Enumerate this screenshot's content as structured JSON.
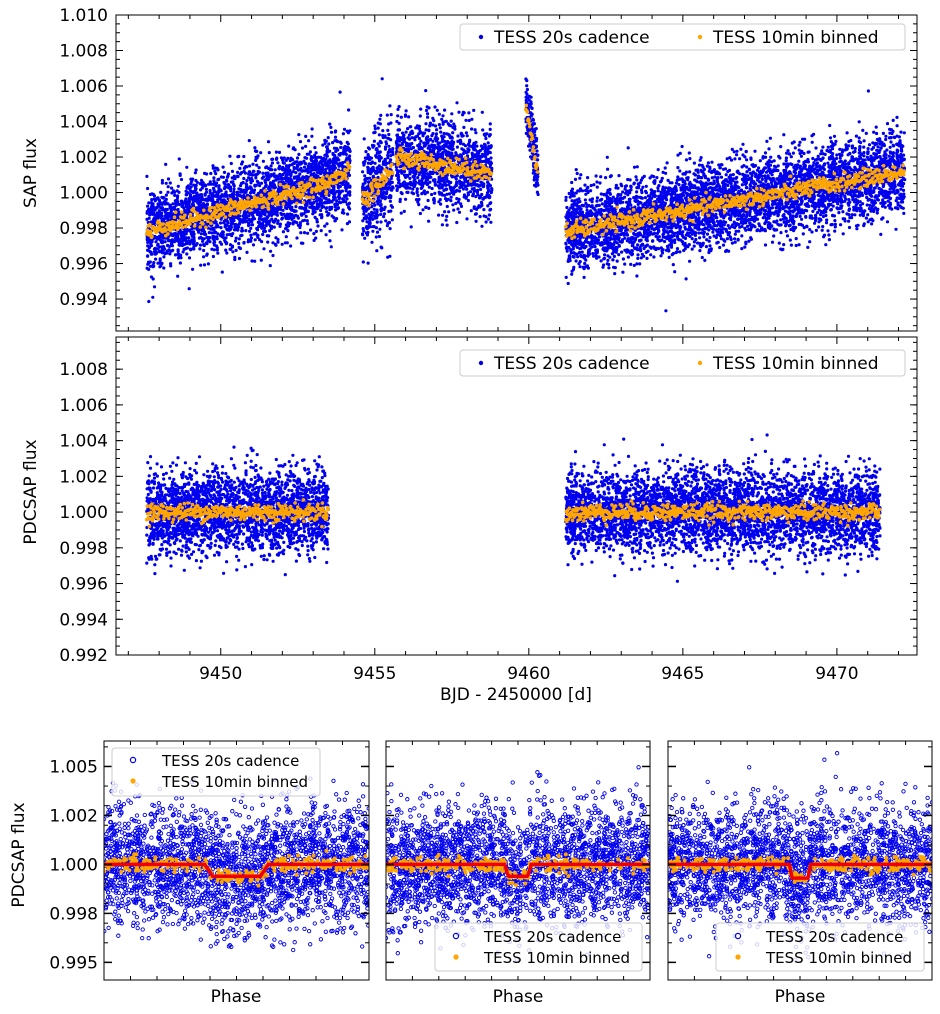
{
  "chart_data": [
    {
      "type": "scatter",
      "ylabel": "SAP flux",
      "xlabel": "",
      "xlim": [
        9446.6,
        9472.6
      ],
      "ylim": [
        0.9922,
        1.01
      ],
      "yticks": [
        "0.994",
        "0.996",
        "0.998",
        "1.000",
        "1.002",
        "1.004",
        "1.006",
        "1.008",
        "1.010"
      ],
      "xticks": [],
      "legend_position": "top-right",
      "segments": [
        {
          "x": [
            9447.6,
            9453.4
          ],
          "y0": [
            0.9978,
            1.0005
          ],
          "spread": 0.003
        },
        {
          "x": [
            9453.4,
            9454.2
          ],
          "y0": [
            1.0005,
            1.0012
          ],
          "spread": 0.0035
        },
        {
          "x": [
            9454.6,
            9455.6
          ],
          "y0": [
            0.9995,
            1.0013
          ],
          "spread": 0.004
        },
        {
          "x": [
            9455.7,
            9458.8
          ],
          "y0": [
            1.002,
            1.0011
          ],
          "spread": 0.0032
        },
        {
          "x": [
            9459.9,
            9460.3
          ],
          "y0": [
            1.005,
            1.001
          ],
          "spread": 0.0025
        },
        {
          "x": [
            9461.2,
            9472.2
          ],
          "y0": [
            0.9978,
            1.0012
          ],
          "spread": 0.003
        }
      ],
      "series": [
        {
          "name": "TESS 20s cadence",
          "color": "#0000ee"
        },
        {
          "name": "TESS 10min binned",
          "color": "#ffa500"
        }
      ]
    },
    {
      "type": "scatter",
      "ylabel": "PDCSAP flux",
      "xlabel": "BJD - 2450000 [d]",
      "xlim": [
        9446.6,
        9472.6
      ],
      "ylim": [
        0.992,
        1.0098
      ],
      "yticks": [
        "0.992",
        "0.994",
        "0.996",
        "0.998",
        "1.000",
        "1.002",
        "1.004",
        "1.006",
        "1.008"
      ],
      "xticks": [
        "9450",
        "9455",
        "9460",
        "9465",
        "9470"
      ],
      "legend_position": "top-right",
      "segments": [
        {
          "x": [
            9447.6,
            9453.5
          ],
          "y0": [
            1.0,
            1.0
          ],
          "spread": 0.003
        },
        {
          "x": [
            9461.2,
            9471.4
          ],
          "y0": [
            1.0,
            1.0
          ],
          "spread": 0.003
        }
      ],
      "series": [
        {
          "name": "TESS 20s cadence",
          "color": "#0000ee"
        },
        {
          "name": "TESS 10min binned",
          "color": "#ffa500"
        }
      ]
    },
    {
      "type": "scatter",
      "ylabel": "PDCSAP flux",
      "xlabel": "Phase",
      "xlim": [
        -0.5,
        0.5
      ],
      "ylim": [
        0.9941,
        1.0063
      ],
      "yticks": [
        "0.995",
        "0.998",
        "1.000",
        "1.002",
        "1.005"
      ],
      "legend_position": "top-left",
      "model": {
        "color": "#ee0000",
        "depth": 0.0006,
        "center": 0.0,
        "halfwidth": 0.12
      },
      "series": [
        {
          "name": "TESS 20s cadence",
          "color": "#0000ee"
        },
        {
          "name": "TESS 10min binned",
          "color": "#ffa500"
        }
      ]
    },
    {
      "type": "scatter",
      "ylabel": "",
      "xlabel": "Phase",
      "xlim": [
        -0.5,
        0.5
      ],
      "ylim": [
        0.9941,
        1.0063
      ],
      "legend_position": "bottom-right",
      "model": {
        "color": "#ee0000",
        "depth": 0.0006,
        "center": 0.0,
        "halfwidth": 0.05
      },
      "series": [
        {
          "name": "TESS 20s cadence",
          "color": "#0000ee"
        },
        {
          "name": "TESS 10min binned",
          "color": "#ffa500"
        }
      ]
    },
    {
      "type": "scatter",
      "ylabel": "",
      "xlabel": "Phase",
      "xlim": [
        -0.5,
        0.5
      ],
      "ylim": [
        0.9941,
        1.0063
      ],
      "legend_position": "bottom-right",
      "model": {
        "color": "#ee0000",
        "depth": 0.0007,
        "center": 0.0,
        "halfwidth": 0.04
      },
      "series": [
        {
          "name": "TESS 20s cadence",
          "color": "#0000ee"
        },
        {
          "name": "TESS 10min binned",
          "color": "#ffa500"
        }
      ]
    }
  ]
}
